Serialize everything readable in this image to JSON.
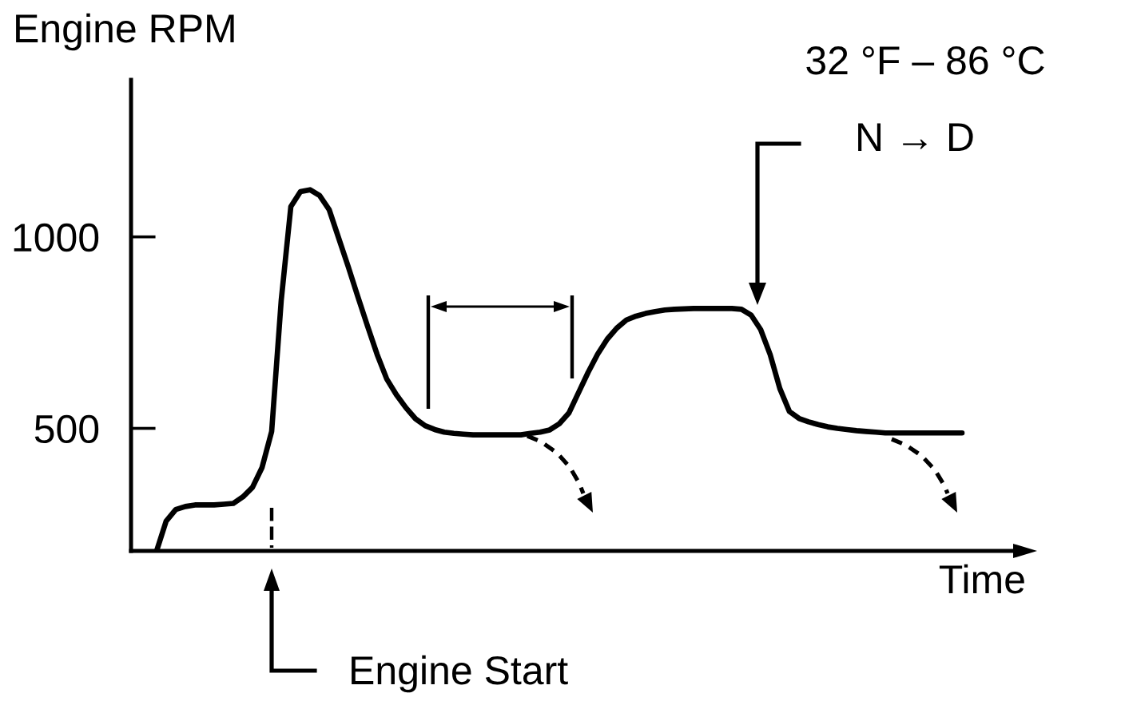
{
  "chart_data": {
    "type": "line",
    "ylabel": "Engine RPM",
    "xlabel": "Time",
    "categories": [
      null,
      null,
      null,
      null,
      null,
      null,
      null,
      null,
      null,
      null,
      null,
      null,
      null,
      null,
      null,
      null,
      null,
      null,
      null,
      null,
      null,
      null,
      null,
      null,
      null,
      null,
      null,
      null,
      null,
      null,
      null,
      null,
      null,
      null,
      null,
      null,
      null,
      null,
      null,
      null,
      null,
      null,
      null,
      null,
      null,
      null,
      null,
      null,
      null,
      null,
      null,
      null,
      null,
      null,
      null,
      null,
      null,
      null,
      null,
      null,
      null,
      null,
      null,
      null,
      null,
      null,
      null,
      null,
      null,
      null,
      null,
      null,
      null,
      null,
      null,
      null,
      null,
      null,
      null,
      null,
      null,
      null,
      null,
      null,
      null
    ],
    "series": [
      {
        "color": "#000000",
        "values": [
          180,
          258,
          288,
          296,
          300,
          300,
          300,
          302,
          304,
          321,
          346,
          398,
          492,
          835,
          1079,
          1118,
          1123,
          1108,
          1071,
          996,
          921,
          843,
          767,
          693,
          629,
          588,
          554,
          525,
          507,
          497,
          490,
          487,
          485,
          483,
          483,
          483,
          483,
          483,
          483,
          487,
          490,
          496,
          512,
          540,
          593,
          646,
          694,
          733,
          762,
          783,
          793,
          800,
          805,
          809,
          811,
          812,
          813,
          813,
          813,
          813,
          813,
          811,
          796,
          758,
          692,
          604,
          544,
          526,
          517,
          510,
          504,
          500,
          497,
          494,
          492,
          490,
          488,
          488,
          488,
          488,
          488,
          488,
          488,
          488,
          488
        ]
      }
    ],
    "ylim": [
      180,
      1410
    ],
    "yticks": [
      500,
      1000
    ],
    "tick_labels": "y",
    "line_style": "solid",
    "annotations": [
      "32 °F – 86 °C",
      "N → D",
      "Engine Start"
    ]
  }
}
